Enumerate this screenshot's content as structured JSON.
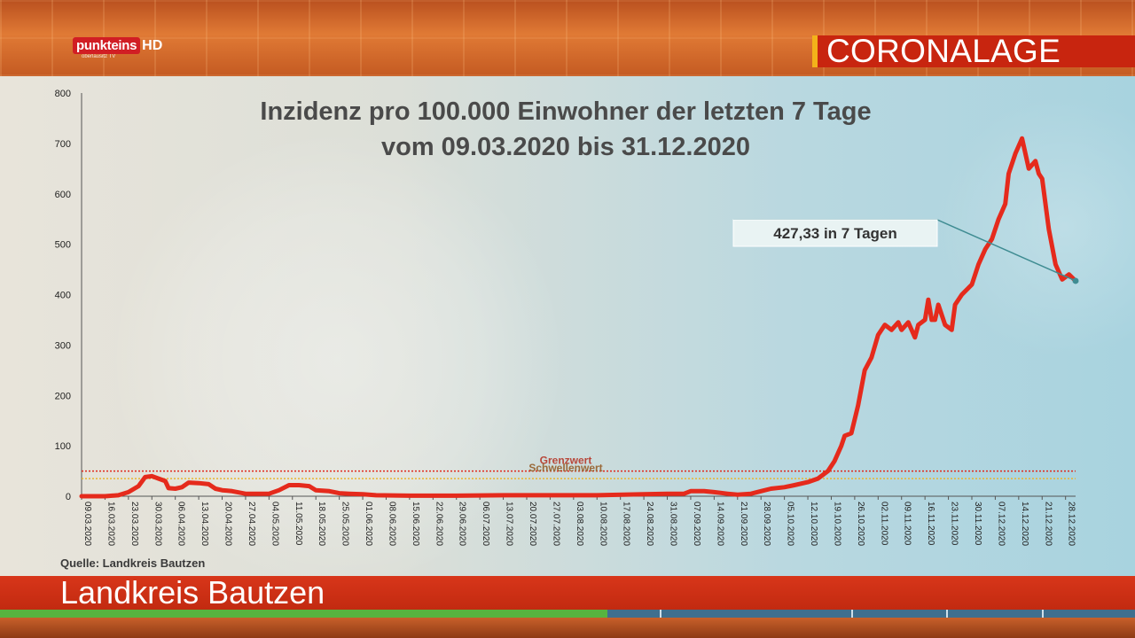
{
  "header": {
    "logo_text": "punkteins",
    "logo_hd": "HD",
    "logo_sub": "oberlausitz TV",
    "section": "CORONALAGE"
  },
  "footer": {
    "location": "Landkreis Bautzen"
  },
  "colors": {
    "line": "#e52a1c",
    "grenzwert": "#e0261a",
    "schwellenwert": "#e8b530",
    "accent_red": "#c8250f",
    "accent_yellow": "#f3b21a",
    "callout_line": "#3f8c92"
  },
  "chart_data": {
    "type": "line",
    "title": "Inzidenz pro 100.000 Einwohner der letzten 7 Tage",
    "subtitle": "vom 09.03.2020 bis 31.12.2020",
    "source": "Quelle: Landkreis Bautzen",
    "ylim": [
      0,
      800
    ],
    "yticks": [
      "0",
      "100",
      "200",
      "300",
      "400",
      "500",
      "600",
      "700",
      "800"
    ],
    "x_range": [
      "09.03.2020",
      "31.12.2020"
    ],
    "xticks": [
      "09.03.2020",
      "16.03.2020",
      "23.03.2020",
      "30.03.2020",
      "06.04.2020",
      "13.04.2020",
      "20.04.2020",
      "27.04.2020",
      "04.05.2020",
      "11.05.2020",
      "18.05.2020",
      "25.05.2020",
      "01.06.2020",
      "08.06.2020",
      "15.06.2020",
      "22.06.2020",
      "29.06.2020",
      "06.07.2020",
      "13.07.2020",
      "20.07.2020",
      "27.07.2020",
      "03.08.2020",
      "10.08.2020",
      "17.08.2020",
      "24.08.2020",
      "31.08.2020",
      "07.09.2020",
      "14.09.2020",
      "21.09.2020",
      "28.09.2020",
      "05.10.2020",
      "12.10.2020",
      "19.10.2020",
      "26.10.2020",
      "02.11.2020",
      "09.11.2020",
      "16.11.2020",
      "23.11.2020",
      "30.11.2020",
      "07.12.2020",
      "14.12.2020",
      "21.12.2020",
      "28.12.2020"
    ],
    "grid": false,
    "reference_lines": [
      {
        "label": "Grenzwert",
        "value": 50
      },
      {
        "label": "Schwellenwert",
        "value": 35
      }
    ],
    "annotation": {
      "text": "427,33 in 7 Tagen",
      "date": "31.12.2020",
      "value": 427.33
    },
    "series": [
      {
        "points": [
          [
            "09.03.2020",
            0
          ],
          [
            "16.03.2020",
            0
          ],
          [
            "20.03.2020",
            2
          ],
          [
            "23.03.2020",
            8
          ],
          [
            "26.03.2020",
            20
          ],
          [
            "28.03.2020",
            38
          ],
          [
            "30.03.2020",
            40
          ],
          [
            "01.04.2020",
            35
          ],
          [
            "03.04.2020",
            30
          ],
          [
            "04.04.2020",
            16
          ],
          [
            "06.04.2020",
            15
          ],
          [
            "08.04.2020",
            18
          ],
          [
            "10.04.2020",
            27
          ],
          [
            "13.04.2020",
            26
          ],
          [
            "16.04.2020",
            24
          ],
          [
            "18.04.2020",
            15
          ],
          [
            "20.04.2020",
            12
          ],
          [
            "23.04.2020",
            10
          ],
          [
            "27.04.2020",
            5
          ],
          [
            "04.05.2020",
            5
          ],
          [
            "07.05.2020",
            12
          ],
          [
            "10.05.2020",
            22
          ],
          [
            "13.05.2020",
            22
          ],
          [
            "16.05.2020",
            20
          ],
          [
            "18.05.2020",
            12
          ],
          [
            "22.05.2020",
            10
          ],
          [
            "25.05.2020",
            6
          ],
          [
            "28.05.2020",
            5
          ],
          [
            "01.06.2020",
            4
          ],
          [
            "05.06.2020",
            2
          ],
          [
            "15.06.2020",
            1
          ],
          [
            "29.06.2020",
            1
          ],
          [
            "13.07.2020",
            2
          ],
          [
            "27.07.2020",
            2
          ],
          [
            "10.08.2020",
            2
          ],
          [
            "24.08.2020",
            4
          ],
          [
            "31.08.2020",
            5
          ],
          [
            "05.09.2020",
            5
          ],
          [
            "07.09.2020",
            10
          ],
          [
            "11.09.2020",
            10
          ],
          [
            "14.09.2020",
            8
          ],
          [
            "18.09.2020",
            5
          ],
          [
            "21.09.2020",
            3
          ],
          [
            "25.09.2020",
            5
          ],
          [
            "28.09.2020",
            10
          ],
          [
            "01.10.2020",
            15
          ],
          [
            "05.10.2020",
            18
          ],
          [
            "08.10.2020",
            22
          ],
          [
            "12.10.2020",
            28
          ],
          [
            "15.10.2020",
            35
          ],
          [
            "18.10.2020",
            50
          ],
          [
            "20.10.2020",
            70
          ],
          [
            "22.10.2020",
            100
          ],
          [
            "23.10.2020",
            120
          ],
          [
            "25.10.2020",
            125
          ],
          [
            "27.10.2020",
            180
          ],
          [
            "29.10.2020",
            250
          ],
          [
            "31.10.2020",
            275
          ],
          [
            "02.11.2020",
            320
          ],
          [
            "04.11.2020",
            340
          ],
          [
            "06.11.2020",
            330
          ],
          [
            "08.11.2020",
            345
          ],
          [
            "09.11.2020",
            330
          ],
          [
            "11.11.2020",
            345
          ],
          [
            "13.11.2020",
            315
          ],
          [
            "14.11.2020",
            340
          ],
          [
            "16.11.2020",
            350
          ],
          [
            "17.11.2020",
            390
          ],
          [
            "18.11.2020",
            350
          ],
          [
            "19.11.2020",
            350
          ],
          [
            "20.11.2020",
            380
          ],
          [
            "22.11.2020",
            340
          ],
          [
            "24.11.2020",
            330
          ],
          [
            "25.11.2020",
            380
          ],
          [
            "27.11.2020",
            400
          ],
          [
            "30.11.2020",
            420
          ],
          [
            "02.12.2020",
            460
          ],
          [
            "04.12.2020",
            490
          ],
          [
            "06.12.2020",
            510
          ],
          [
            "08.12.2020",
            550
          ],
          [
            "10.12.2020",
            580
          ],
          [
            "11.12.2020",
            640
          ],
          [
            "13.12.2020",
            680
          ],
          [
            "15.12.2020",
            710
          ],
          [
            "17.12.2020",
            650
          ],
          [
            "19.12.2020",
            665
          ],
          [
            "20.12.2020",
            640
          ],
          [
            "21.12.2020",
            630
          ],
          [
            "23.12.2020",
            530
          ],
          [
            "25.12.2020",
            460
          ],
          [
            "27.12.2020",
            430
          ],
          [
            "29.12.2020",
            440
          ],
          [
            "31.12.2020",
            427.33
          ]
        ]
      }
    ]
  }
}
